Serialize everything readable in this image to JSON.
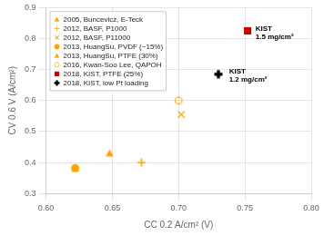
{
  "chart_data": {
    "type": "scatter",
    "xlabel": "CC 0.2 A/cm² (V)",
    "ylabel": "CV 0.6 V (A/cm²)",
    "xlim": [
      0.6,
      0.8
    ],
    "ylim": [
      0.3,
      0.9
    ],
    "xticks": [
      {
        "value": 0.6,
        "label": "0.60"
      },
      {
        "value": 0.65,
        "label": "0.65"
      },
      {
        "value": 0.7,
        "label": "0.70"
      },
      {
        "value": 0.75,
        "label": "0.75"
      },
      {
        "value": 0.8,
        "label": "0.80"
      }
    ],
    "yticks": [
      0.3,
      0.4,
      0.5,
      0.6,
      0.7,
      0.8,
      0.9
    ],
    "grid": true,
    "legend": "upper left",
    "series": [
      {
        "name": "2005, Buncevicz, E-Teck",
        "color": "#FFA500",
        "marker": "triangle",
        "x": [
          0.622
        ],
        "values": [
          0.382
        ]
      },
      {
        "name": "2012, BASF, P1000",
        "color": "#FFA500",
        "marker": "plus",
        "x": [
          0.672
        ],
        "values": [
          0.4
        ]
      },
      {
        "name": "2012, BASF, P11000",
        "color": "#FFA500",
        "marker": "x",
        "x": [
          0.702
        ],
        "values": [
          0.555
        ]
      },
      {
        "name": "2013, HuangSu, PVDF (~15%)",
        "color": "#FFA500",
        "marker": "circle",
        "x": [
          0.622
        ],
        "values": [
          0.382
        ]
      },
      {
        "name": "2013, HuangSu, PTFE (30%)",
        "color": "#FFA500",
        "marker": "triangle",
        "x": [
          0.648
        ],
        "values": [
          0.43
        ]
      },
      {
        "name": "2016, Kwan-Soo Lee, QAPOH",
        "color": "#FFA500",
        "marker": "circle_open",
        "x": [
          0.7
        ],
        "values": [
          0.6
        ]
      },
      {
        "name": "2018, KIST, PTFE (25%)",
        "color": "#CC0000",
        "marker": "square",
        "x": [
          0.752
        ],
        "values": [
          0.825
        ]
      },
      {
        "name": "2018, KIST, low Pt loading",
        "color": "#000000",
        "marker": "plus_filled",
        "x": [
          0.73
        ],
        "values": [
          0.685
        ]
      }
    ],
    "annotations": [
      {
        "text": "KIST\n1.5 mg/cm²",
        "x": 0.758,
        "y": 0.8
      },
      {
        "text": "KIST\n1.2 mg/cm²",
        "x": 0.738,
        "y": 0.66
      }
    ]
  }
}
